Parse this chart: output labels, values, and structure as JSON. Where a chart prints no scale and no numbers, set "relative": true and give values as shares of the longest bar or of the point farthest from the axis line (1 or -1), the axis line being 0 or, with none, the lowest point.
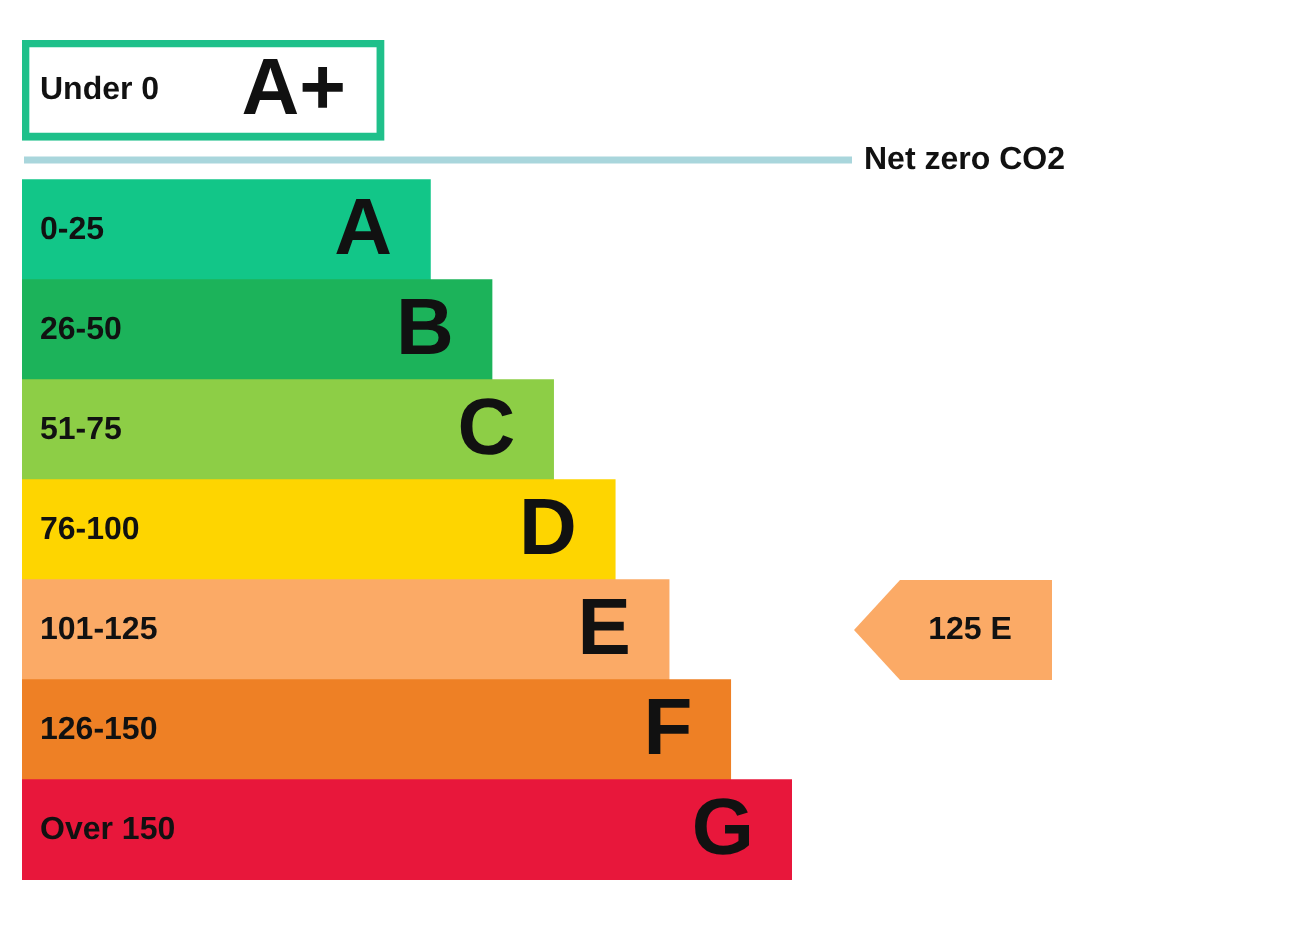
{
  "chart_data": {
    "type": "bar",
    "orientation": "horizontal",
    "relative": true,
    "categories": [
      "Under 0",
      "0-25",
      "26-50",
      "51-75",
      "76-100",
      "101-125",
      "126-150",
      "Over 150"
    ],
    "values": [
      0.47,
      0.53,
      0.61,
      0.69,
      0.77,
      0.84,
      0.92,
      1
    ],
    "colors": [
      "#1fc08a",
      "#12c688",
      "#1cb35a",
      "#8dce46",
      "#fed500",
      "#fbaa66",
      "#ee8025",
      "#e8173b"
    ],
    "ref_lines": [
      {
        "axis": "y",
        "value": "0-25",
        "label": "Net zero CO2",
        "color": "#a9d6dc"
      }
    ],
    "annotations": [
      {
        "text": "A+",
        "x": 0.47,
        "y": "Under 0"
      },
      {
        "text": "A",
        "x": 0.53,
        "y": "0-25"
      },
      {
        "text": "B",
        "x": 0.61,
        "y": "26-50"
      },
      {
        "text": "C",
        "x": 0.69,
        "y": "51-75"
      },
      {
        "text": "D",
        "x": 0.77,
        "y": "76-100"
      },
      {
        "text": "E",
        "x": 0.84,
        "y": "101-125"
      },
      {
        "text": "F",
        "x": 0.92,
        "y": "126-150"
      },
      {
        "text": "G",
        "x": 1,
        "y": "Over 150"
      },
      "125 E"
    ]
  }
}
